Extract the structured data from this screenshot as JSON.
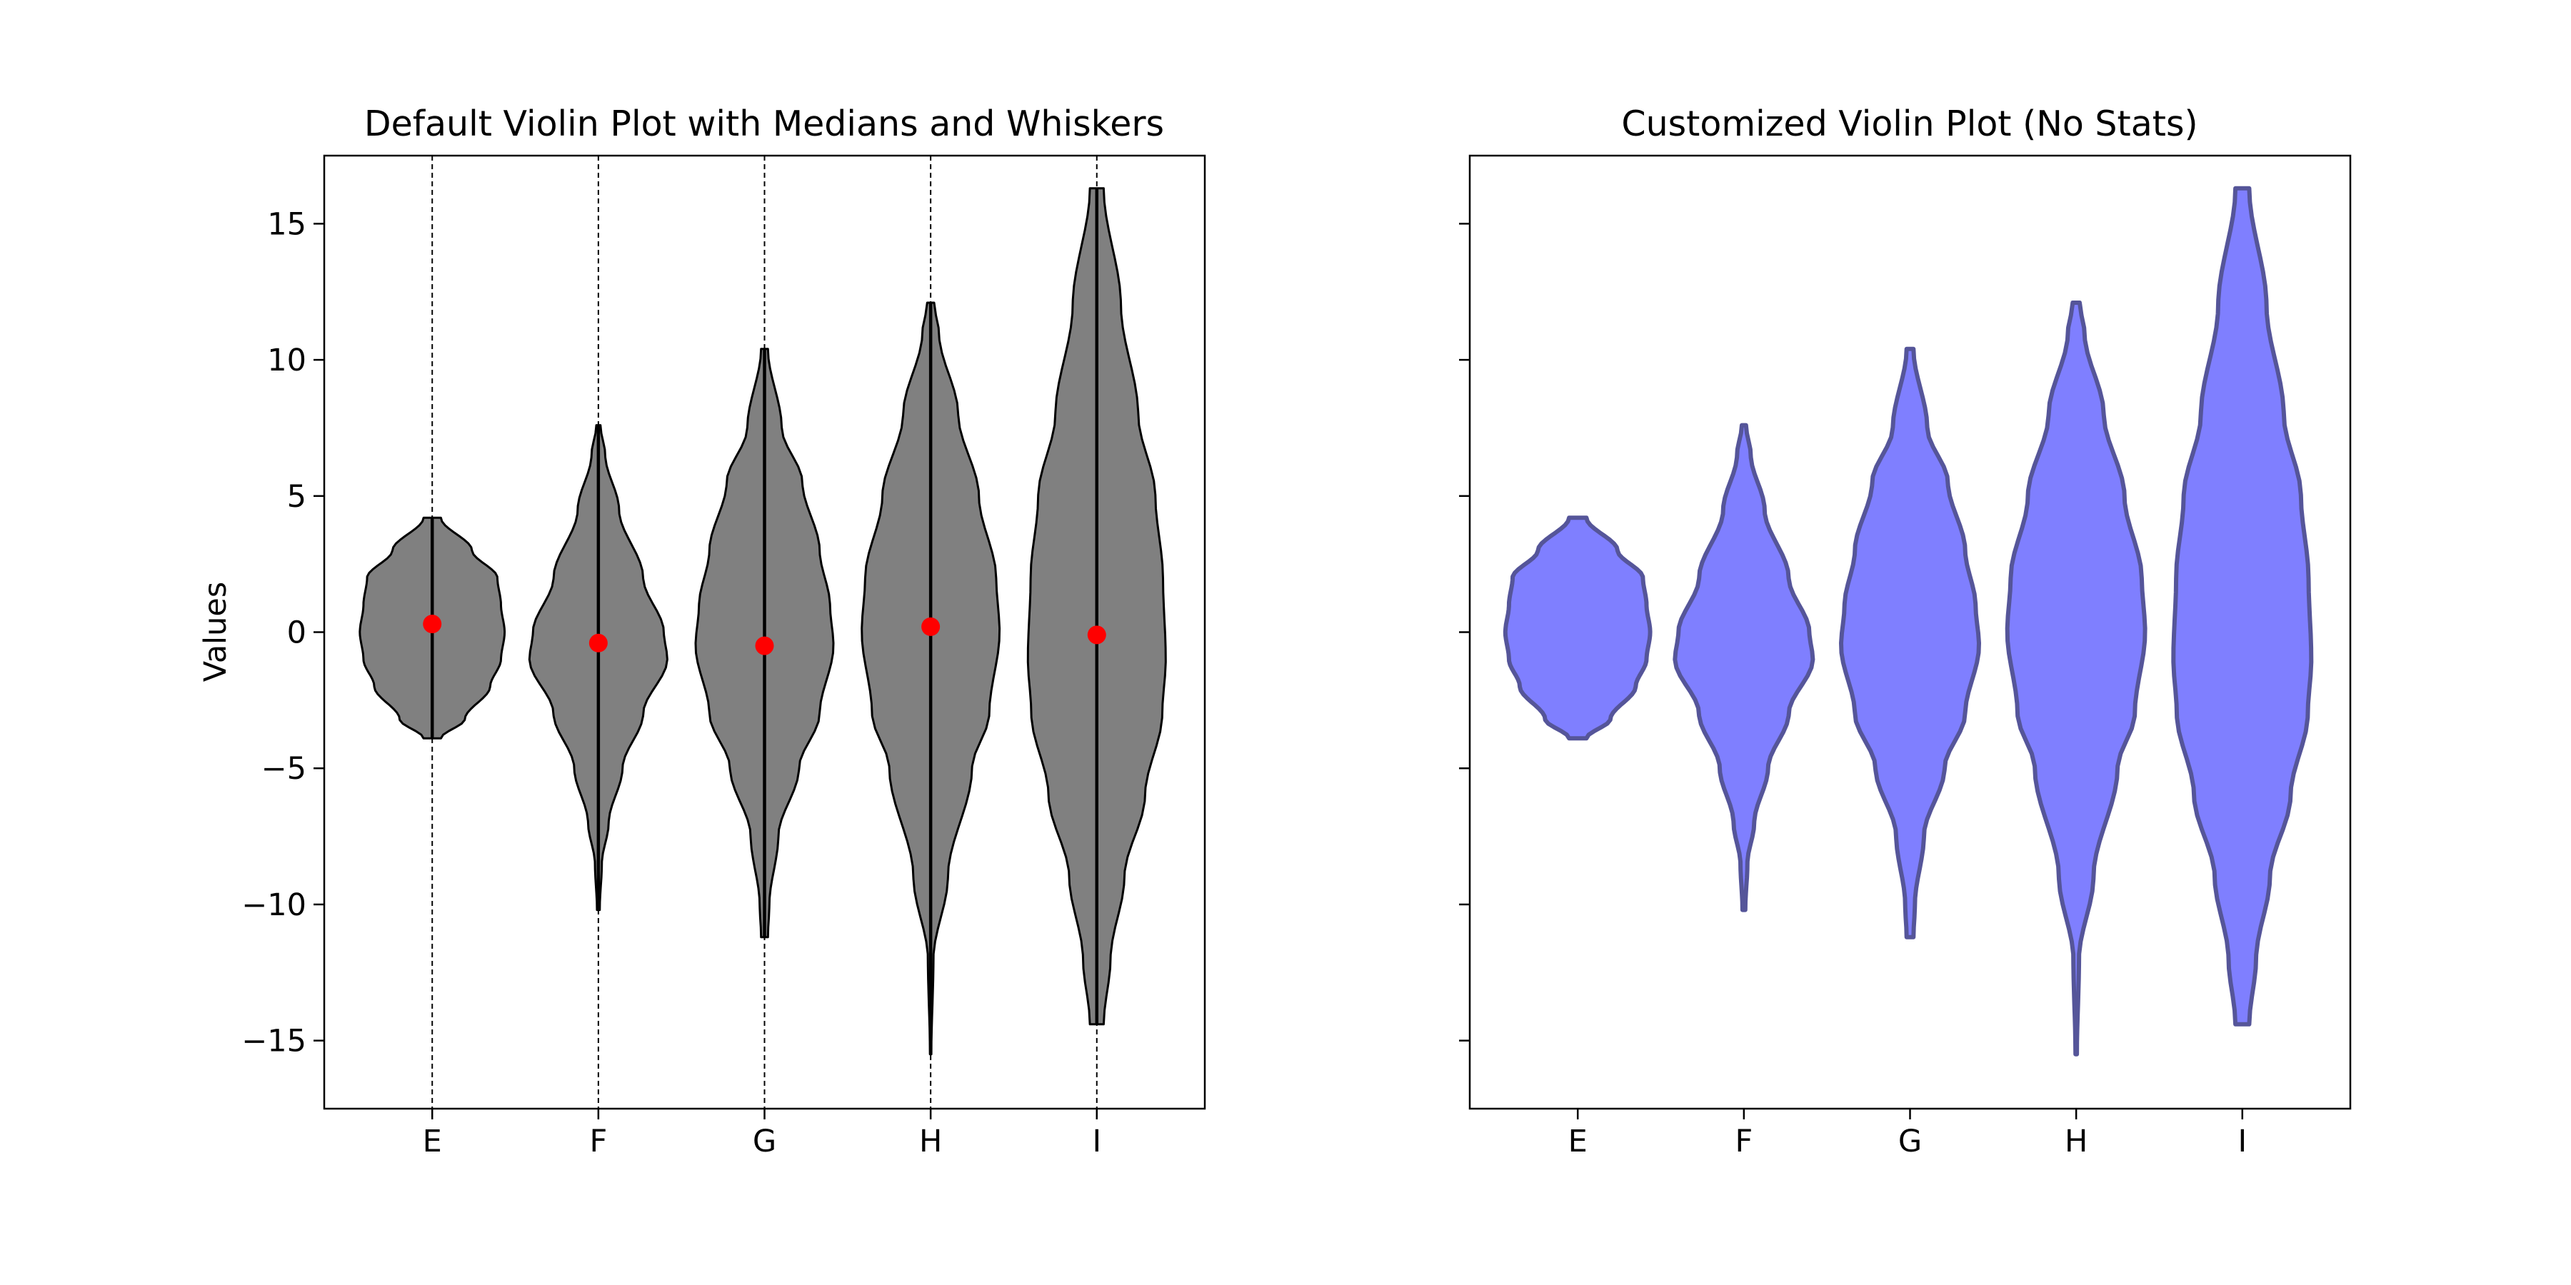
{
  "ylim": [
    -17.5,
    17.5
  ],
  "yticks": [
    15,
    10,
    5,
    0,
    -5,
    -10,
    -15
  ],
  "colors": {
    "left_fill": "#808080",
    "left_edge": "#000000",
    "median": "#ff0000",
    "right_fill": "#7f7fff",
    "right_edge": "#555599"
  },
  "chart_data": [
    {
      "type": "violin",
      "title": "Default Violin Plot with Medians and Whiskers",
      "ylabel": "Values",
      "categories": [
        "E",
        "F",
        "G",
        "H",
        "I"
      ],
      "show_medians": true,
      "show_extrema": true,
      "series": [
        {
          "category": "E",
          "min": -3.9,
          "max": 4.2,
          "median": 0.3,
          "profile": [
            [
              -3.9,
              0.12
            ],
            [
              -3.2,
              0.45
            ],
            [
              -2,
              0.8
            ],
            [
              -1,
              0.95
            ],
            [
              0,
              1.0
            ],
            [
              1,
              0.95
            ],
            [
              2,
              0.9
            ],
            [
              3,
              0.55
            ],
            [
              4.2,
              0.12
            ]
          ],
          "maxw": 0.42
        },
        {
          "category": "F",
          "min": -10.2,
          "max": 7.6,
          "median": -0.4,
          "profile": [
            [
              -10.2,
              0.02
            ],
            [
              -8.5,
              0.05
            ],
            [
              -7,
              0.15
            ],
            [
              -5,
              0.35
            ],
            [
              -3,
              0.65
            ],
            [
              -1,
              1.0
            ],
            [
              0,
              0.95
            ],
            [
              2,
              0.65
            ],
            [
              4.5,
              0.3
            ],
            [
              6.5,
              0.1
            ],
            [
              7.6,
              0.03
            ]
          ],
          "maxw": 0.4
        },
        {
          "category": "G",
          "min": -11.2,
          "max": 10.4,
          "median": -0.5,
          "profile": [
            [
              -11.2,
              0.05
            ],
            [
              -10,
              0.07
            ],
            [
              -7.5,
              0.2
            ],
            [
              -5,
              0.5
            ],
            [
              -3,
              0.8
            ],
            [
              -0.5,
              1.0
            ],
            [
              1,
              0.95
            ],
            [
              3,
              0.8
            ],
            [
              5.5,
              0.55
            ],
            [
              7.5,
              0.25
            ],
            [
              10.4,
              0.05
            ]
          ],
          "maxw": 0.4
        },
        {
          "category": "H",
          "min": -15.5,
          "max": 12.1,
          "median": 0.2,
          "profile": [
            [
              -15.5,
              0.01
            ],
            [
              -12,
              0.04
            ],
            [
              -9,
              0.25
            ],
            [
              -5,
              0.6
            ],
            [
              -3,
              0.85
            ],
            [
              0,
              1.0
            ],
            [
              2,
              0.95
            ],
            [
              5,
              0.7
            ],
            [
              8,
              0.4
            ],
            [
              11,
              0.12
            ],
            [
              12.1,
              0.05
            ]
          ],
          "maxw": 0.4
        },
        {
          "category": "I",
          "min": -14.4,
          "max": 16.3,
          "median": -0.1,
          "profile": [
            [
              -14.4,
              0.1
            ],
            [
              -12,
              0.2
            ],
            [
              -9,
              0.4
            ],
            [
              -6,
              0.7
            ],
            [
              -3,
              0.95
            ],
            [
              -1,
              1.0
            ],
            [
              2,
              0.96
            ],
            [
              5,
              0.85
            ],
            [
              8,
              0.6
            ],
            [
              12,
              0.35
            ],
            [
              16.3,
              0.1
            ]
          ],
          "maxw": 0.4
        }
      ]
    },
    {
      "type": "violin",
      "title": "Customized Violin Plot (No Stats)",
      "ylabel": "",
      "categories": [
        "E",
        "F",
        "G",
        "H",
        "I"
      ],
      "show_medians": false,
      "show_extrema": false
    }
  ]
}
